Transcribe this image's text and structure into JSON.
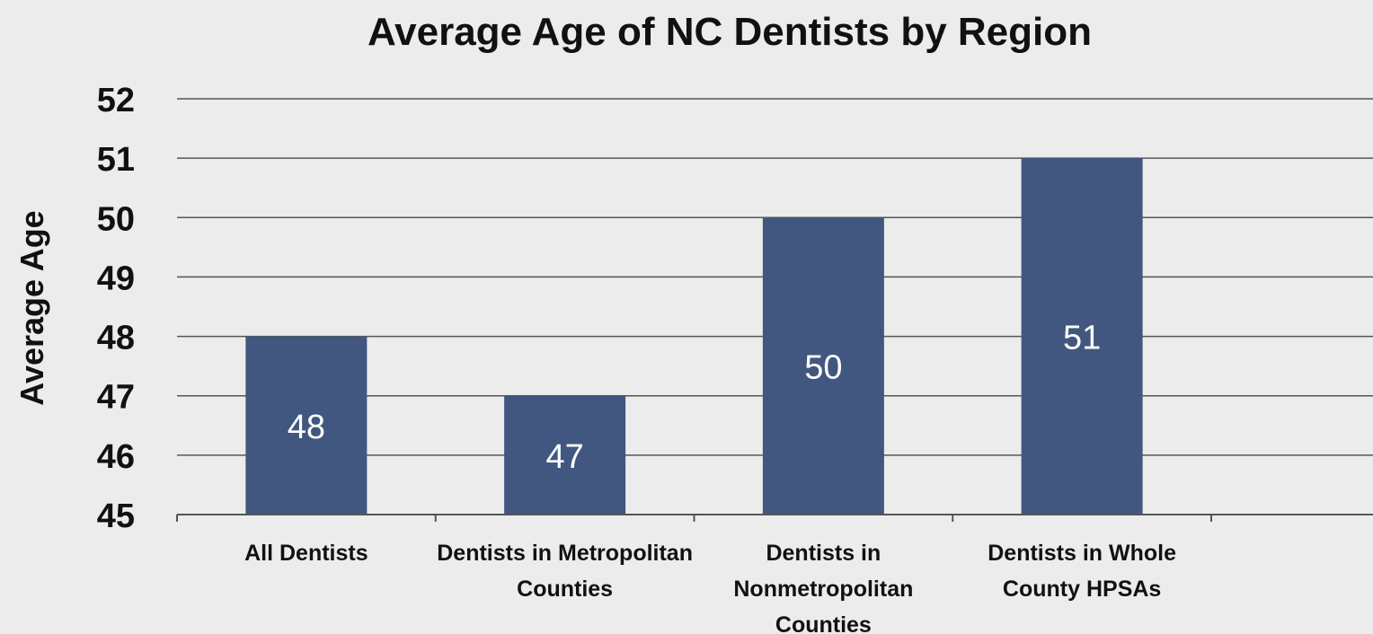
{
  "chart_data": {
    "type": "bar",
    "title": "Average Age of NC Dentists by Region",
    "ylabel": "Average Age",
    "xlabel": "",
    "categories": [
      [
        "All Dentists"
      ],
      [
        "Dentists in Metropolitan",
        "Counties"
      ],
      [
        "Dentists in",
        "Nonmetropolitan",
        "Counties"
      ],
      [
        "Dentists in Whole",
        "County HPSAs"
      ]
    ],
    "values": [
      48,
      47,
      50,
      51
    ],
    "data_labels": [
      "48",
      "47",
      "50",
      "51"
    ],
    "ylim": [
      45,
      52
    ],
    "yticks": [
      45,
      46,
      47,
      48,
      49,
      50,
      51,
      52
    ],
    "grid": true,
    "legend": "none",
    "colors": {
      "bar": "#41577f",
      "grid": "#555555",
      "text": "#111111",
      "data_label": "#ffffff",
      "background": "#ececec"
    }
  }
}
